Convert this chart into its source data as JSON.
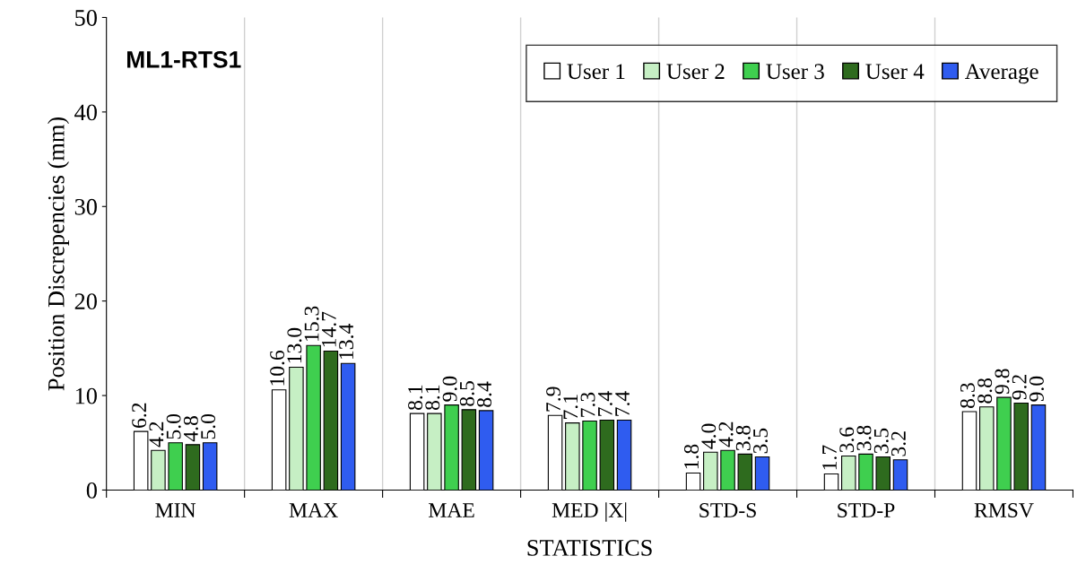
{
  "chart_data": {
    "type": "bar",
    "title": "ML1-RTS1",
    "xlabel": "STATISTICS",
    "ylabel": "Position Discrepencies (mm)",
    "categories": [
      "MIN",
      "MAX",
      "MAE",
      "MED |X|",
      "STD-S",
      "STD-P",
      "RMSV"
    ],
    "series": [
      {
        "name": "User 1",
        "color": "#ffffff",
        "values": [
          6.2,
          10.6,
          8.1,
          7.9,
          1.8,
          1.7,
          8.3
        ],
        "value_labels": [
          "6.2",
          "10.6",
          "8.1",
          "7.9",
          "1.8",
          "1.7",
          "8.3"
        ]
      },
      {
        "name": "User 2",
        "color": "#c6efc4",
        "values": [
          4.2,
          13.0,
          8.1,
          7.1,
          4.0,
          3.6,
          8.8
        ],
        "value_labels": [
          "4.2",
          "13.0",
          "8.1",
          "7.1",
          "4.0",
          "3.6",
          "8.8"
        ]
      },
      {
        "name": "User 3",
        "color": "#3fcf4f",
        "values": [
          5.0,
          15.3,
          9.0,
          7.3,
          4.2,
          3.8,
          9.8
        ],
        "value_labels": [
          "5.0",
          "15.3",
          "9.0",
          "7.3",
          "4.2",
          "3.8",
          "9.8"
        ]
      },
      {
        "name": "User 4",
        "color": "#2e6b1e",
        "values": [
          4.8,
          14.7,
          8.5,
          7.4,
          3.8,
          3.5,
          9.2
        ],
        "value_labels": [
          "4.8",
          "14.7",
          "8.5",
          "7.4",
          "3.8",
          "3.5",
          "9.2"
        ]
      },
      {
        "name": "Average",
        "color": "#2f5cf0",
        "values": [
          5.0,
          13.4,
          8.4,
          7.4,
          3.5,
          3.2,
          9.0
        ],
        "value_labels": [
          "5.0",
          "13.4",
          "8.4",
          "7.4",
          "3.5",
          "3.2",
          "9.0"
        ]
      }
    ],
    "ylim": [
      0,
      50
    ],
    "yticks": [
      0,
      10,
      20,
      30,
      40,
      50
    ],
    "grid": "x",
    "legend": "top right"
  }
}
